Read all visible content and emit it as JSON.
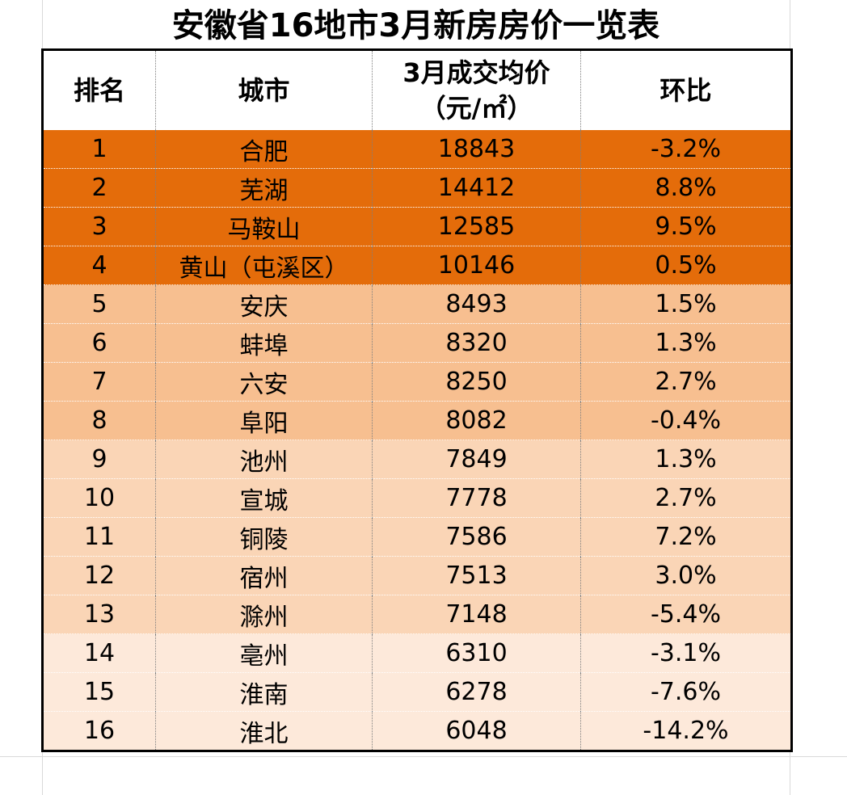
{
  "title": "安徽省16地市3月新房房价一览表",
  "headers": {
    "rank": "排名",
    "city": "城市",
    "price_line1": "3月成交均价",
    "price_line2": "（元/㎡）",
    "change": "环比"
  },
  "colors": {
    "tier1": "#e46c0a",
    "tier2": "#f7bf90",
    "tier3": "#fad5b6",
    "tier4": "#fde9da",
    "negative": "#2ca02c",
    "positive": "#ff0000"
  },
  "rows": [
    {
      "rank": "1",
      "city": "合肥",
      "price": "18843",
      "change": "-3.2%"
    },
    {
      "rank": "2",
      "city": "芜湖",
      "price": "14412",
      "change": "8.8%"
    },
    {
      "rank": "3",
      "city": "马鞍山",
      "price": "12585",
      "change": "9.5%"
    },
    {
      "rank": "4",
      "city": "黄山（屯溪区）",
      "price": "10146",
      "change": "0.5%"
    },
    {
      "rank": "5",
      "city": "安庆",
      "price": "8493",
      "change": "1.5%"
    },
    {
      "rank": "6",
      "city": "蚌埠",
      "price": "8320",
      "change": "1.3%"
    },
    {
      "rank": "7",
      "city": "六安",
      "price": "8250",
      "change": "2.7%"
    },
    {
      "rank": "8",
      "city": "阜阳",
      "price": "8082",
      "change": "-0.4%"
    },
    {
      "rank": "9",
      "city": "池州",
      "price": "7849",
      "change": "1.3%"
    },
    {
      "rank": "10",
      "city": "宣城",
      "price": "7778",
      "change": "2.7%"
    },
    {
      "rank": "11",
      "city": "铜陵",
      "price": "7586",
      "change": "7.2%"
    },
    {
      "rank": "12",
      "city": "宿州",
      "price": "7513",
      "change": "3.0%"
    },
    {
      "rank": "13",
      "city": "滁州",
      "price": "7148",
      "change": "-5.4%"
    },
    {
      "rank": "14",
      "city": "亳州",
      "price": "6310",
      "change": "-3.1%"
    },
    {
      "rank": "15",
      "city": "淮南",
      "price": "6278",
      "change": "-7.6%"
    },
    {
      "rank": "16",
      "city": "淮北",
      "price": "6048",
      "change": "-14.2%"
    }
  ]
}
